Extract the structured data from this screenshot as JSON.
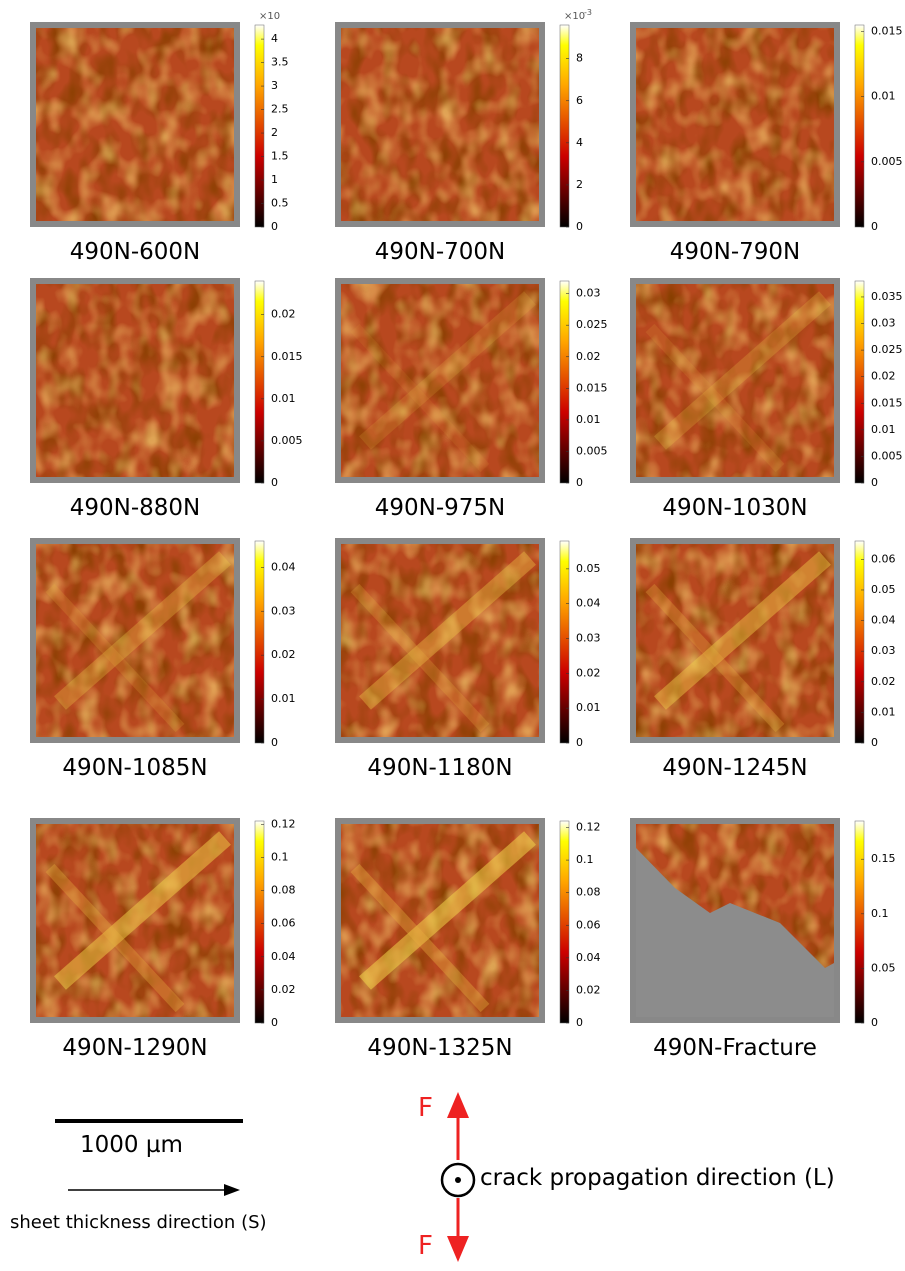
{
  "panels": [
    {
      "label": "490N-600N",
      "exponent": {
        "base": "×10"
      },
      "clim": [
        0,
        4.3
      ],
      "ticks": [
        0,
        0.5,
        1,
        1.5,
        2,
        2.5,
        3,
        3.5,
        4
      ]
    },
    {
      "label": "490N-700N",
      "exponent": {
        "base": "×10",
        "power": "-3"
      },
      "clim": [
        0,
        9.6
      ],
      "ticks": [
        0,
        2,
        4,
        6,
        8
      ]
    },
    {
      "label": "490N-790N",
      "clim": [
        0,
        0.0155
      ],
      "ticks": [
        0,
        0.005,
        0.01,
        0.015
      ]
    },
    {
      "label": "490N-880N",
      "clim": [
        0,
        0.024
      ],
      "ticks": [
        0,
        0.005,
        0.01,
        0.015,
        0.02
      ]
    },
    {
      "label": "490N-975N",
      "clim": [
        0,
        0.032
      ],
      "ticks": [
        0,
        0.005,
        0.01,
        0.015,
        0.02,
        0.025,
        0.03
      ]
    },
    {
      "label": "490N-1030N",
      "clim": [
        0,
        0.038
      ],
      "ticks": [
        0,
        0.005,
        0.01,
        0.015,
        0.02,
        0.025,
        0.03,
        0.035
      ]
    },
    {
      "label": "490N-1085N",
      "clim": [
        0,
        0.046
      ],
      "ticks": [
        0,
        0.01,
        0.02,
        0.03,
        0.04
      ]
    },
    {
      "label": "490N-1180N",
      "clim": [
        0,
        0.058
      ],
      "ticks": [
        0,
        0.01,
        0.02,
        0.03,
        0.04,
        0.05
      ]
    },
    {
      "label": "490N-1245N",
      "clim": [
        0,
        0.066
      ],
      "ticks": [
        0,
        0.01,
        0.02,
        0.03,
        0.04,
        0.05,
        0.06
      ]
    },
    {
      "label": "490N-1290N",
      "clim": [
        0,
        0.122
      ],
      "ticks": [
        0,
        0.02,
        0.04,
        0.06,
        0.08,
        0.1,
        0.12
      ]
    },
    {
      "label": "490N-1325N",
      "clim": [
        0,
        0.124
      ],
      "ticks": [
        0,
        0.02,
        0.04,
        0.06,
        0.08,
        0.1,
        0.12
      ]
    },
    {
      "label": "490N-Fracture",
      "clim": [
        0,
        0.185
      ],
      "ticks": [
        0,
        0.05,
        0.1,
        0.15
      ]
    }
  ],
  "scale_bar": {
    "label": "1000 µm"
  },
  "thickness_arrow": {
    "label": "sheet thickness direction (S)"
  },
  "force": {
    "top_label": "F",
    "bottom_label": "F",
    "crack_label": "crack propagation direction (L)"
  }
}
